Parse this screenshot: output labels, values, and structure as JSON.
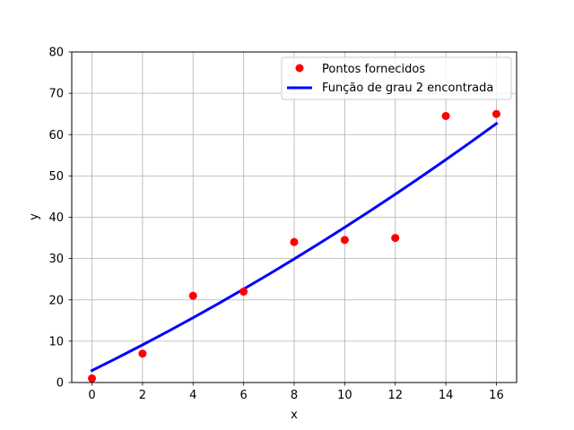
{
  "chart_data": {
    "type": "scatter",
    "xlabel": "x",
    "ylabel": "y",
    "xlim": [
      -0.8,
      16.8
    ],
    "ylim": [
      0,
      80
    ],
    "xticks": [
      0,
      2,
      4,
      6,
      8,
      10,
      12,
      14,
      16
    ],
    "yticks": [
      0,
      10,
      20,
      30,
      40,
      50,
      60,
      70,
      80
    ],
    "grid": true,
    "legend_position": "top-right",
    "series": [
      {
        "name": "Pontos fornecidos",
        "kind": "scatter",
        "color": "#ff0000",
        "x": [
          0,
          2,
          4,
          6,
          8,
          10,
          12,
          14,
          16
        ],
        "y": [
          1,
          7,
          21,
          22,
          34,
          34.5,
          35,
          64.5,
          65
        ]
      },
      {
        "name": "Função de grau 2 encontrada",
        "kind": "line",
        "color": "#0000ff",
        "x": [
          0,
          1,
          2,
          3,
          4,
          5,
          6,
          7,
          8,
          9,
          10,
          11,
          12,
          13,
          14,
          15,
          16
        ],
        "y": [
          2.9,
          5.96,
          9.11,
          12.35,
          15.68,
          19.1,
          22.61,
          26.21,
          29.9,
          33.68,
          37.55,
          41.51,
          45.56,
          49.7,
          53.93,
          58.25,
          62.66
        ]
      }
    ]
  },
  "legend": {
    "scatter_label": "Pontos fornecidos",
    "line_label": "Função de grau 2 encontrada"
  }
}
